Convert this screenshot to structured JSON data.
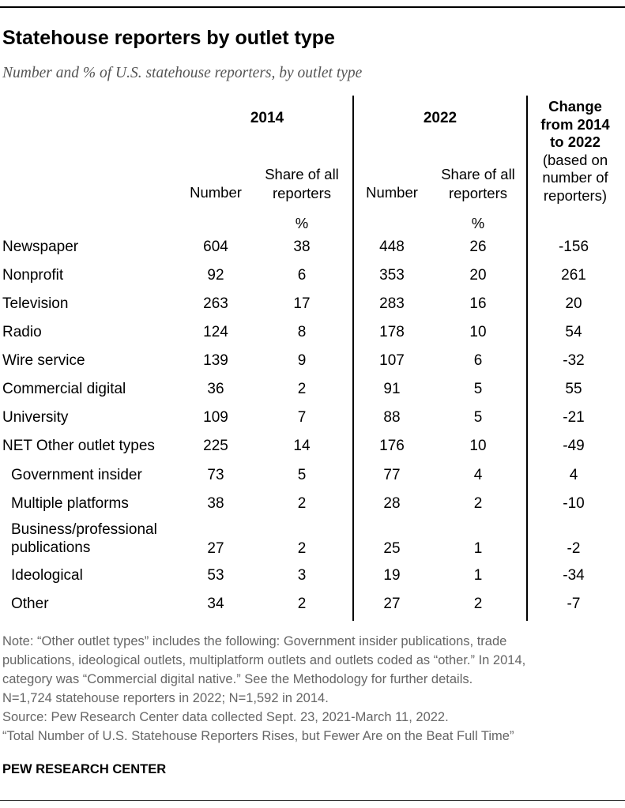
{
  "title": "Statehouse reporters by outlet type",
  "subtitle": "Number and % of U.S. statehouse reporters, by outlet type",
  "header": {
    "year_2014": "2014",
    "year_2022": "2022",
    "change_bold_1": "Change",
    "change_bold_2": "from 2014",
    "change_bold_3": "to 2022",
    "change_note_1": "(based on",
    "change_note_2": "number of",
    "change_note_3": "reporters)",
    "number": "Number",
    "share_1": "Share of all",
    "share_2": "reporters",
    "pct": "%"
  },
  "chart_data": {
    "type": "table",
    "columns": [
      "2014 Number",
      "2014 Share of all reporters %",
      "2022 Number",
      "2022 Share of all reporters %",
      "Change from 2014 to 2022 (based on number of reporters)"
    ],
    "rows": [
      {
        "label": "Newspaper",
        "values": [
          "604",
          "38",
          "448",
          "26",
          "-156"
        ]
      },
      {
        "label": "Nonprofit",
        "values": [
          "92",
          "6",
          "353",
          "20",
          "261"
        ]
      },
      {
        "label": "Television",
        "values": [
          "263",
          "17",
          "283",
          "16",
          "20"
        ]
      },
      {
        "label": "Radio",
        "values": [
          "124",
          "8",
          "178",
          "10",
          "54"
        ]
      },
      {
        "label": "Wire service",
        "values": [
          "139",
          "9",
          "107",
          "6",
          "-32"
        ]
      },
      {
        "label": "Commercial digital",
        "values": [
          "36",
          "2",
          "91",
          "5",
          "55"
        ]
      },
      {
        "label": "University",
        "values": [
          "109",
          "7",
          "88",
          "5",
          "-21"
        ]
      },
      {
        "label": "NET Other outlet types",
        "values": [
          "225",
          "14",
          "176",
          "10",
          "-49"
        ]
      },
      {
        "label": "Government insider",
        "values": [
          "73",
          "5",
          "77",
          "4",
          "4"
        ]
      },
      {
        "label": "Multiple platforms",
        "values": [
          "38",
          "2",
          "28",
          "2",
          "-10"
        ]
      },
      {
        "label_1": "Business/professional",
        "label_2": "publications",
        "values": [
          "27",
          "2",
          "25",
          "1",
          "-2"
        ]
      },
      {
        "label": "Ideological",
        "values": [
          "53",
          "3",
          "19",
          "1",
          "-34"
        ]
      },
      {
        "label": "Other",
        "values": [
          "34",
          "2",
          "27",
          "2",
          "-7"
        ]
      }
    ]
  },
  "notes": [
    "Note: “Other outlet types” includes the following: Government insider publications, trade",
    "publications, ideological outlets, multiplatform outlets and outlets coded as “other.” In 2014,",
    "category was “Commercial digital native.” See the Methodology for further details.",
    "N=1,724 statehouse reporters in 2022; N=1,592 in 2014.",
    "Source: Pew Research Center data collected Sept. 23, 2021-March 11, 2022.",
    "“Total Number of U.S. Statehouse Reporters Rises, but Fewer Are on the Beat Full Time”"
  ],
  "brand": "PEW RESEARCH CENTER"
}
